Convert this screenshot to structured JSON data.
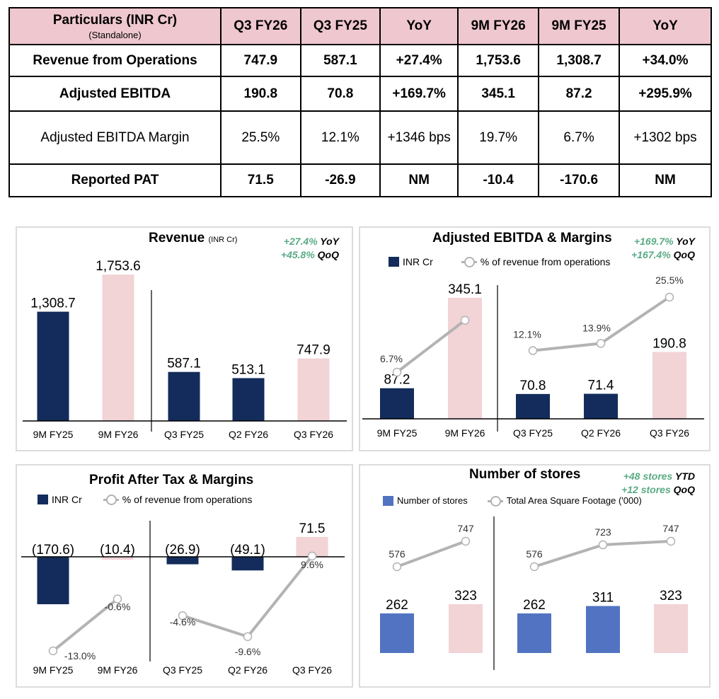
{
  "table": {
    "headers": [
      "Particulars (INR Cr)",
      "Q3 FY26",
      "Q3 FY25",
      "YoY",
      "9M FY26",
      "9M FY25",
      "YoY"
    ],
    "header_sub": "(Standalone)",
    "rows": [
      {
        "cells": [
          "Revenue from Operations",
          "747.9",
          "587.1",
          "+27.4%",
          "1,753.6",
          "1,308.7",
          "+34.0%"
        ],
        "bold": true
      },
      {
        "cells": [
          "Adjusted EBITDA",
          "190.8",
          "70.8",
          "+169.7%",
          "345.1",
          "87.2",
          "+295.9%"
        ],
        "bold": true
      },
      {
        "cells": [
          "Adjusted EBITDA Margin",
          "25.5%",
          "12.1%",
          "+1346 bps",
          "19.7%",
          "6.7%",
          "+1302 bps"
        ],
        "bold": false
      },
      {
        "cells": [
          "Reported PAT",
          "71.5",
          "-26.9",
          "NM",
          "-10.4",
          "-170.6",
          "NM"
        ],
        "bold": true
      }
    ]
  },
  "colors": {
    "navy": "#132c5b",
    "pink": "#f2d3d6",
    "blue": "#5173c1",
    "green": "#5bab85",
    "line": "#b3b3b3",
    "header": "#efc7cf"
  },
  "chart_data": [
    {
      "type": "bar",
      "title": "Revenue",
      "title_unit": "(INR Cr)",
      "notes": [
        {
          "value": "+27.4%",
          "label": "YoY"
        },
        {
          "value": "+45.8%",
          "label": "QoQ"
        }
      ],
      "categories": [
        "9M FY25",
        "9M FY26",
        "Q3 FY25",
        "Q2 FY26",
        "Q3 FY26"
      ],
      "bars": {
        "values": [
          1308.7,
          1753.6,
          587.1,
          513.1,
          747.9
        ],
        "labels": [
          "1,308.7",
          "1,753.6",
          "587.1",
          "513.1",
          "747.9"
        ],
        "colors": [
          "navy",
          "pink",
          "navy",
          "navy",
          "pink"
        ]
      }
    },
    {
      "type": "bar+line",
      "title": "Adjusted EBITDA & Margins",
      "notes": [
        {
          "value": "+169.7%",
          "label": "YoY"
        },
        {
          "value": "+167.4%",
          "label": "QoQ"
        }
      ],
      "legend": [
        "INR Cr",
        "% of revenue from operations"
      ],
      "categories": [
        "9M FY25",
        "9M FY26",
        "Q3 FY25",
        "Q2 FY26",
        "Q3 FY26"
      ],
      "bars": {
        "values": [
          87.2,
          345.1,
          70.8,
          71.4,
          190.8
        ],
        "labels": [
          "87.2",
          "345.1",
          "70.8",
          "71.4",
          "190.8"
        ],
        "colors": [
          "navy",
          "pink",
          "navy",
          "navy",
          "pink"
        ]
      },
      "line": {
        "values": [
          6.7,
          19.7,
          12.1,
          13.9,
          25.5
        ],
        "labels": [
          "6.7%",
          "",
          "12.1%",
          "13.9%",
          "25.5%"
        ],
        "segments": [
          [
            0,
            1
          ],
          [
            2,
            3,
            4
          ]
        ]
      }
    },
    {
      "type": "bar+line",
      "title": "Profit After Tax & Margins",
      "legend": [
        "INR Cr",
        "% of revenue from operations"
      ],
      "categories": [
        "9M FY25",
        "9M FY26",
        "Q3 FY25",
        "Q2 FY26",
        "Q3 FY26"
      ],
      "bars": {
        "values": [
          -170.6,
          -10.4,
          -26.9,
          -49.1,
          71.5
        ],
        "labels": [
          "(170.6)",
          "(10.4)",
          "(26.9)",
          "(49.1)",
          "71.5"
        ],
        "colors": [
          "navy",
          "pink",
          "navy",
          "navy",
          "pink"
        ]
      },
      "line": {
        "values": [
          -13.0,
          -0.6,
          -4.6,
          -9.6,
          9.6
        ],
        "labels": [
          "-13.0%",
          "-0.6%",
          "-4.6%",
          "-9.6%",
          "9.6%"
        ],
        "segments": [
          [
            0,
            1
          ],
          [
            2,
            3,
            4
          ]
        ]
      }
    },
    {
      "type": "bar+line",
      "title": "Number of stores",
      "notes": [
        {
          "value": "+48 stores",
          "label": "YTD"
        },
        {
          "value": "+12 stores",
          "label": "QoQ"
        }
      ],
      "legend": [
        "Number of stores",
        "Total Area Square Footage ('000)"
      ],
      "bars": {
        "values": [
          262,
          323,
          262,
          311,
          323
        ],
        "labels": [
          "262",
          "323",
          "262",
          "311",
          "323"
        ],
        "colors": [
          "blue",
          "pink",
          "blue",
          "blue",
          "pink"
        ]
      },
      "line": {
        "values": [
          576,
          747,
          576,
          723,
          747
        ],
        "labels": [
          "576",
          "747",
          "576",
          "723",
          "747"
        ],
        "segments": [
          [
            0,
            1
          ],
          [
            2,
            3,
            4
          ]
        ]
      }
    }
  ]
}
